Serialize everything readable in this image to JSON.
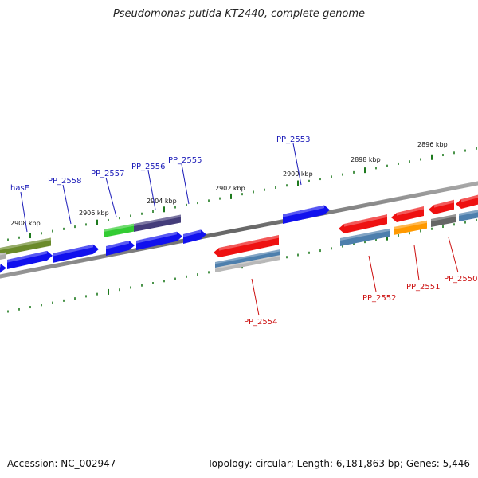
{
  "title": "Pseudomonas putida KT2440, complete genome",
  "footer": {
    "accession": "Accession: NC_002947",
    "summary": "Topology: circular; Length: 6,181,863 bp; Genes: 5,446"
  },
  "colors": {
    "backbone": "#777777",
    "ticks": "#1e7a1e",
    "forward_label": "#1a1ab8",
    "reverse_label": "#cc1111"
  },
  "scale_labels": [
    "2908 kbp",
    "2906 kbp",
    "2904 kbp",
    "2902 kbp",
    "2900 kbp",
    "2898 kbp",
    "2896 kbp"
  ],
  "gene_labels": {
    "forward": [
      "hasE",
      "PP_2558",
      "PP_2557",
      "PP_2556",
      "PP_2555",
      "PP_2553"
    ],
    "reverse": [
      "PP_2554",
      "PP_2552",
      "PP_2551",
      "PP_2550"
    ]
  }
}
